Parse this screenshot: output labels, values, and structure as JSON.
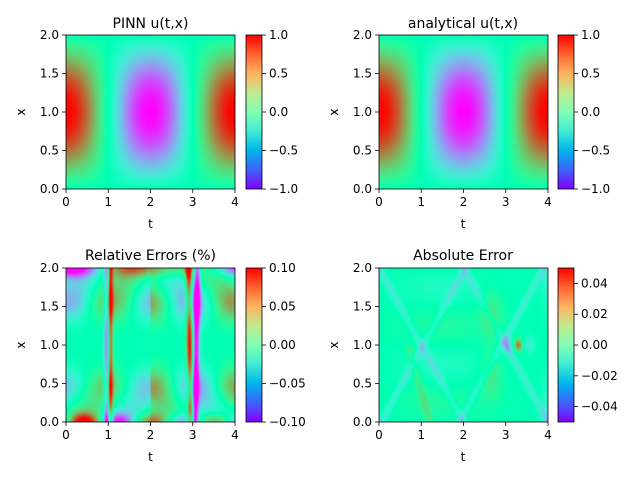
{
  "chart_data": [
    {
      "type": "heatmap",
      "title": "PINN u(t,x)",
      "field": "u",
      "xlabel": "t",
      "ylabel": "x",
      "xlim": [
        0,
        4
      ],
      "ylim": [
        0,
        2
      ],
      "xticks": [
        "0",
        "1",
        "2",
        "3",
        "4"
      ],
      "yticks": [
        "0.0",
        "0.5",
        "1.0",
        "1.5",
        "2.0"
      ],
      "colorbar": {
        "range": [
          -1.0,
          1.0
        ],
        "ticks": [
          "1.0",
          "0.5",
          "0.0",
          "−0.5",
          "−1.0"
        ],
        "tick_values": [
          1.0,
          0.5,
          0.0,
          -0.5,
          -1.0
        ]
      },
      "colormap": "rainbow"
    },
    {
      "type": "heatmap",
      "title": "analytical u(t,x)",
      "field": "u",
      "xlabel": "t",
      "ylabel": "x",
      "xlim": [
        0,
        4
      ],
      "ylim": [
        0,
        2
      ],
      "xticks": [
        "0",
        "1",
        "2",
        "3",
        "4"
      ],
      "yticks": [
        "0.0",
        "0.5",
        "1.0",
        "1.5",
        "2.0"
      ],
      "colorbar": {
        "range": [
          -1.0,
          1.0
        ],
        "ticks": [
          "1.0",
          "0.5",
          "0.0",
          "−0.5",
          "−1.0"
        ],
        "tick_values": [
          1.0,
          0.5,
          0.0,
          -0.5,
          -1.0
        ]
      },
      "colormap": "rainbow"
    },
    {
      "type": "heatmap",
      "title": "Relative Errors (%)",
      "field": "relerr",
      "xlabel": "t",
      "ylabel": "x",
      "xlim": [
        0,
        4
      ],
      "ylim": [
        0,
        2
      ],
      "xticks": [
        "0",
        "1",
        "2",
        "3",
        "4"
      ],
      "yticks": [
        "0.0",
        "0.5",
        "1.0",
        "1.5",
        "2.0"
      ],
      "colorbar": {
        "range": [
          -0.1,
          0.1
        ],
        "ticks": [
          "0.10",
          "0.05",
          "0.00",
          "−0.05",
          "−0.10"
        ],
        "tick_values": [
          0.1,
          0.05,
          0.0,
          -0.05,
          -0.1
        ]
      },
      "colormap": "rainbow"
    },
    {
      "type": "heatmap",
      "title": "Absolute Error",
      "field": "abserr",
      "xlabel": "t",
      "ylabel": "x",
      "xlim": [
        0,
        4
      ],
      "ylim": [
        0,
        2
      ],
      "xticks": [
        "0",
        "1",
        "2",
        "3",
        "4"
      ],
      "yticks": [
        "0.0",
        "0.5",
        "1.0",
        "1.5",
        "2.0"
      ],
      "colorbar": {
        "range": [
          -0.05,
          0.05
        ],
        "ticks": [
          "0.04",
          "0.02",
          "0.00",
          "−0.02",
          "−0.04"
        ],
        "tick_values": [
          0.04,
          0.02,
          0.0,
          -0.02,
          -0.04
        ]
      },
      "colormap": "rainbow"
    }
  ]
}
